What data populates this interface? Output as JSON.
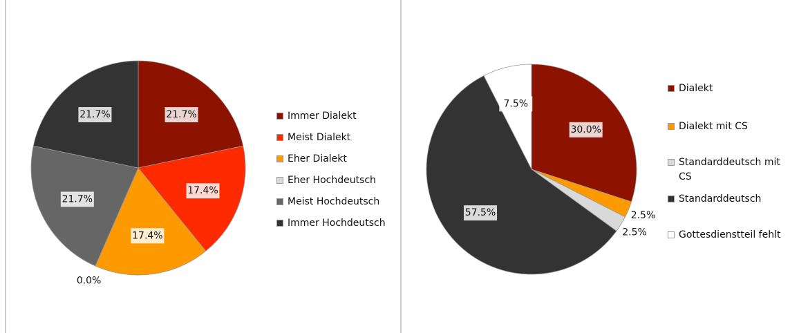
{
  "chart_data": [
    {
      "type": "pie",
      "categories": [
        "Immer Dialekt",
        "Meist Dialekt",
        "Eher Dialekt",
        "Eher Hochdeutsch",
        "Meist Hochdeutsch",
        "Immer Hochdeutsch"
      ],
      "values": [
        21.7,
        17.4,
        17.4,
        0.0,
        21.7,
        21.7
      ],
      "value_labels": [
        "21.7%",
        "17.4%",
        "17.4%",
        "0.0%",
        "21.7%",
        "21.7%"
      ],
      "colors": [
        "#8e1200",
        "#ff2a00",
        "#ff9900",
        "#d9d9d9",
        "#666666",
        "#333333"
      ],
      "legend": "right"
    },
    {
      "type": "pie",
      "categories": [
        "Dialekt",
        "Dialekt mit CS",
        "Standarddeutsch mit CS",
        "Standarddeutsch",
        "Gottesdienstteil fehlt"
      ],
      "values": [
        30.0,
        2.5,
        2.5,
        57.5,
        7.5
      ],
      "value_labels": [
        "30.0%",
        "2.5%",
        "2.5%",
        "57.5%",
        "7.5%"
      ],
      "colors": [
        "#8e1200",
        "#ff9900",
        "#d9d9d9",
        "#333333",
        "#ffffff"
      ],
      "legend": "right"
    }
  ]
}
